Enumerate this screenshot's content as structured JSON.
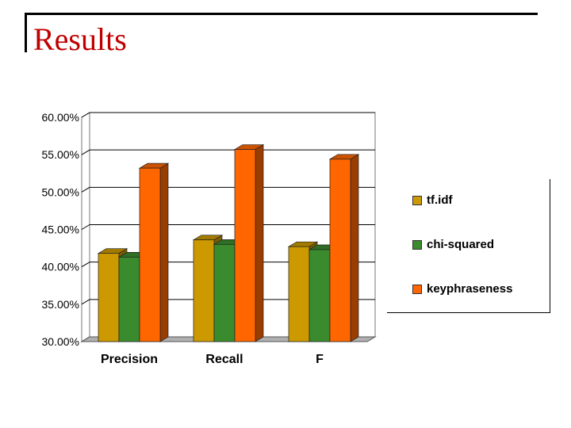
{
  "slide": {
    "title": "Results"
  },
  "chart_data": {
    "type": "bar",
    "title": "",
    "xlabel": "",
    "ylabel": "",
    "categories": [
      "Precision",
      "Recall",
      "F"
    ],
    "series": [
      {
        "name": "tf.idf",
        "color": "#cc9900",
        "values": [
          41.8,
          43.6,
          42.7
        ]
      },
      {
        "name": "chi-squared",
        "color": "#3a8a2e",
        "values": [
          41.3,
          43.0,
          42.3
        ]
      },
      {
        "name": "keyphraseness",
        "color": "#ff6600",
        "values": [
          53.2,
          55.7,
          54.4
        ]
      }
    ],
    "ylim": [
      30,
      60
    ],
    "yticks": [
      "30.00%",
      "35.00%",
      "40.00%",
      "45.00%",
      "50.00%",
      "55.00%",
      "60.00%"
    ],
    "legend_position": "right"
  }
}
